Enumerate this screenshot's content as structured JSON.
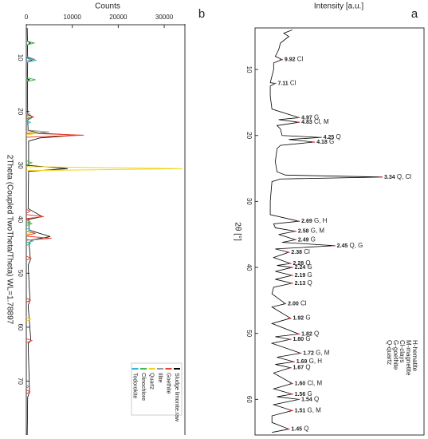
{
  "chart_data": [
    {
      "type": "line",
      "panel": "b",
      "orientation": "rotated",
      "xlabel": "2Theta (Coupled TwoTheta/Theta) WL=1.78897",
      "ylabel": "Counts",
      "xlim": [
        4.5,
        80
      ],
      "xticks": [
        10,
        20,
        30,
        40,
        50,
        60,
        70
      ],
      "ylim": [
        0,
        34500
      ],
      "yticks": [
        0,
        10000,
        20000,
        30000
      ],
      "legend": "bottom-right",
      "series": [
        {
          "name": "Sludge limonite.raw",
          "color": "#000000",
          "style": "line",
          "x": [
            4.5,
            7,
            7.3,
            7.6,
            10,
            10.3,
            10.8,
            14,
            14.1,
            14.3,
            20.5,
            21,
            21.5,
            23.5,
            24,
            24.4,
            24.9,
            25.5,
            30,
            30.6,
            31.1,
            38,
            39.5,
            40,
            42,
            43.2,
            43.8,
            44.5,
            47.5,
            48.5,
            55,
            56,
            62.5,
            63,
            72,
            73,
            80
          ],
          "values": [
            200,
            250,
            900,
            250,
            300,
            1600,
            300,
            250,
            700,
            250,
            300,
            1500,
            300,
            400,
            3000,
            11000,
            3000,
            500,
            500,
            9000,
            500,
            400,
            3500,
            500,
            600,
            5200,
            1200,
            600,
            900,
            400,
            800,
            400,
            1000,
            400,
            700,
            300,
            200
          ]
        },
        {
          "name": "Goethite",
          "color": "#e8412c",
          "style": "sticks",
          "x": [
            21.0,
            24.4,
            38.5,
            39.5,
            42.6,
            43.5,
            47.2,
            55.0,
            62.5,
            72.0
          ],
          "values": [
            1500,
            12500,
            800,
            3800,
            2000,
            5500,
            1000,
            900,
            1200,
            800
          ]
        },
        {
          "name": "Illite",
          "color": "#9a9a9a",
          "style": "sticks",
          "x": [
            10.2,
            20.5,
            23.8,
            40.5,
            71
          ],
          "values": [
            1500,
            800,
            5000,
            900,
            500
          ]
        },
        {
          "name": "Quartz",
          "color": "#f2d417",
          "style": "sticks",
          "x": [
            24.0,
            30.6,
            42.5,
            58.5
          ],
          "values": [
            2500,
            34000,
            900,
            1000
          ]
        },
        {
          "name": "Clinochlore",
          "color": "#3dbb4a",
          "style": "sticks",
          "x": [
            7.3,
            14.1,
            21.3,
            29.5,
            40.8,
            44.5
          ],
          "values": [
            1800,
            2000,
            1000,
            1200,
            1200,
            900
          ]
        },
        {
          "name": "Todorokite",
          "color": "#2bb6d8",
          "style": "sticks",
          "x": [
            10.5,
            22.0,
            42.0,
            44.0
          ],
          "values": [
            2200,
            900,
            900,
            1500
          ]
        }
      ]
    },
    {
      "type": "line",
      "panel": "a",
      "orientation": "rotated",
      "xlabel": "2θ [°]",
      "ylabel": "Intensity [a.u.]",
      "xlim": [
        3.7,
        65.4
      ],
      "xticks": [
        10,
        20,
        30,
        40,
        50,
        60
      ],
      "ylim": [
        0,
        100
      ],
      "series": [
        {
          "color": "#000000",
          "x": [
            4,
            4.5,
            5,
            6,
            7,
            8,
            8.5,
            9,
            10,
            11,
            12,
            12.1,
            12.5,
            14,
            16,
            17.3,
            17.6,
            18,
            18.5,
            19,
            20,
            20.3,
            20.6,
            21,
            21.5,
            22,
            24,
            25.5,
            26,
            26.3,
            26.6,
            27,
            30,
            32,
            33,
            33.4,
            34,
            34.5,
            35,
            35.8,
            36.2,
            36.7,
            37.2,
            37.7,
            38.5,
            39.4,
            39.7,
            40,
            40.6,
            41.2,
            41.8,
            42.4,
            43,
            44,
            45.5,
            46,
            47.7,
            48.5,
            50.1,
            50.5,
            50.9,
            51.5,
            53,
            53.6,
            54.3,
            54.7,
            55.2,
            56,
            57.6,
            58.4,
            59.2,
            59.6,
            60,
            60.8,
            61.7,
            62.5,
            63.5,
            64.5,
            65
          ],
          "values": [
            22,
            17,
            20,
            15,
            14,
            12,
            16,
            11,
            11,
            10,
            9,
            12,
            9,
            9,
            10,
            26,
            14,
            26,
            13,
            15,
            16,
            39,
            20,
            35,
            15,
            13,
            12,
            13,
            18,
            75,
            15,
            10,
            9,
            9,
            26,
            11,
            12,
            24,
            14,
            24,
            16,
            47,
            12,
            20,
            11,
            21,
            13,
            22,
            12,
            22,
            12,
            22,
            11,
            10,
            18,
            10,
            21,
            10,
            26,
            12,
            21,
            10,
            27,
            13,
            23,
            12,
            21,
            11,
            22,
            11,
            22,
            13,
            26,
            11,
            22,
            10,
            10,
            20,
            10
          ]
        }
      ],
      "annotations": [
        {
          "text": "9.92",
          "phase": "Cl",
          "x": 8.5,
          "y": 16
        },
        {
          "text": "7.11",
          "phase": "Cl",
          "x": 12.1,
          "y": 12
        },
        {
          "text": "4.97",
          "phase": "G",
          "x": 17.3,
          "y": 26
        },
        {
          "text": "4.83",
          "phase": "Cl, M",
          "x": 18.0,
          "y": 26
        },
        {
          "text": "4.25",
          "phase": "Q",
          "x": 20.3,
          "y": 39
        },
        {
          "text": "4.18",
          "phase": "G",
          "x": 21.0,
          "y": 35
        },
        {
          "text": "3.34",
          "phase": "Q, Cl",
          "x": 26.3,
          "y": 75
        },
        {
          "text": "2.69",
          "phase": "G, H",
          "x": 33.0,
          "y": 26
        },
        {
          "text": "2.58",
          "phase": "G, M",
          "x": 34.5,
          "y": 24
        },
        {
          "text": "2.49",
          "phase": "G",
          "x": 35.8,
          "y": 24
        },
        {
          "text": "2.45",
          "phase": "Q, G",
          "x": 36.7,
          "y": 47
        },
        {
          "text": "2.38",
          "phase": "Cl",
          "x": 37.7,
          "y": 20
        },
        {
          "text": "2.28",
          "phase": "Q",
          "x": 39.4,
          "y": 21
        },
        {
          "text": "2.24",
          "phase": "G",
          "x": 40.0,
          "y": 22
        },
        {
          "text": "2.19",
          "phase": "G",
          "x": 41.2,
          "y": 22
        },
        {
          "text": "2.13",
          "phase": "Q",
          "x": 42.4,
          "y": 22
        },
        {
          "text": "2.00",
          "phase": "Cl",
          "x": 45.5,
          "y": 18
        },
        {
          "text": "1.92",
          "phase": "G",
          "x": 47.7,
          "y": 21
        },
        {
          "text": "1.82",
          "phase": "Q",
          "x": 50.1,
          "y": 26
        },
        {
          "text": "1.80",
          "phase": "G",
          "x": 50.9,
          "y": 21
        },
        {
          "text": "1.72",
          "phase": "G, M",
          "x": 53.0,
          "y": 27
        },
        {
          "text": "1.69",
          "phase": "G, H",
          "x": 54.3,
          "y": 23
        },
        {
          "text": "1.67",
          "phase": "Q",
          "x": 55.2,
          "y": 21
        },
        {
          "text": "1.60",
          "phase": "Cl, M",
          "x": 57.6,
          "y": 22
        },
        {
          "text": "1.56",
          "phase": "G",
          "x": 59.2,
          "y": 22
        },
        {
          "text": "1.54",
          "phase": "Q",
          "x": 60.0,
          "y": 26
        },
        {
          "text": "1.51",
          "phase": "G, M",
          "x": 61.7,
          "y": 22
        },
        {
          "text": "1.45",
          "phase": "Q",
          "x": 64.5,
          "y": 20
        }
      ],
      "legend_text": [
        "Q-quartz",
        "G-goethite",
        "Cl-clays",
        "M-magnetite",
        "H-hematite"
      ]
    }
  ]
}
